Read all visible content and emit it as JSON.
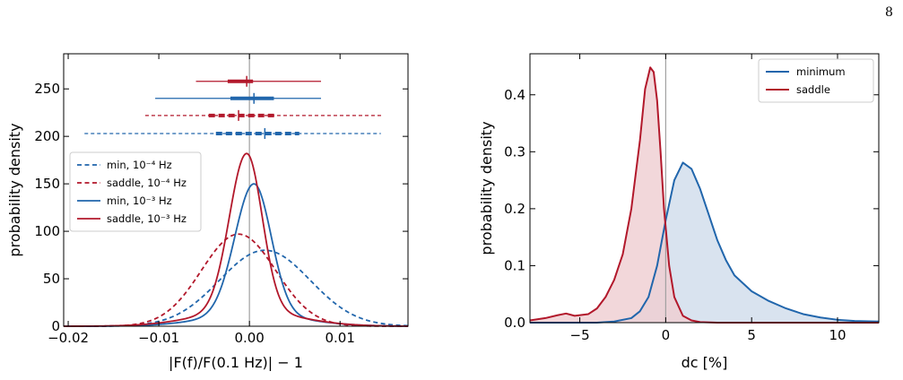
{
  "page_number": "8",
  "colors": {
    "blue": "#2166ac",
    "red": "#b2182b",
    "blue_fill": "#d0dceb",
    "red_fill": "#efcdd1",
    "zero_line": "#a0a0a0"
  },
  "chart_data": [
    {
      "type": "line",
      "xlabel": "|F(f)/F(0.1 Hz)| − 1",
      "ylabel": "probability density",
      "xlim": [
        -0.0205,
        0.0175
      ],
      "ylim": [
        0,
        287
      ],
      "xticks": [
        {
          "value": -0.02,
          "label": "−0.02"
        },
        {
          "value": -0.01,
          "label": "−0.01"
        },
        {
          "value": 0.0,
          "label": "0.00"
        },
        {
          "value": 0.01,
          "label": "0.01"
        }
      ],
      "yticks": [
        0,
        50,
        100,
        150,
        200,
        250
      ],
      "grid": false,
      "legend_position": "center-left",
      "vline_x": 0,
      "series": [
        {
          "name": "min, 10⁻⁴ Hz",
          "color": "#2166ac",
          "dash": true,
          "kind": "gauss",
          "mu": 0.0017,
          "sigma": 0.005,
          "peak": 80
        },
        {
          "name": "saddle, 10⁻⁴ Hz",
          "color": "#b2182b",
          "dash": true,
          "kind": "gauss",
          "mu": -0.0012,
          "sigma": 0.0041,
          "peak": 97
        },
        {
          "name": "min, 10⁻³ Hz",
          "color": "#2166ac",
          "dash": false,
          "kind": "peaked",
          "mu": 0.0005,
          "sigma_left": 0.0021,
          "sigma_right": 0.0019,
          "tail_sigma": 0.0055,
          "tail_weight": 0.08,
          "peak": 150
        },
        {
          "name": "saddle, 10⁻³ Hz",
          "color": "#b2182b",
          "dash": false,
          "kind": "peaked",
          "mu": -0.0003,
          "sigma_left": 0.0019,
          "sigma_right": 0.0017,
          "tail_sigma": 0.0055,
          "tail_weight": 0.09,
          "peak": 182
        }
      ],
      "intervals": [
        {
          "series": "saddle, 10⁻³ Hz",
          "y": 258,
          "color": "#b2182b",
          "dash": false,
          "thin": [
            -0.0059,
            0.0079
          ],
          "thick": [
            -0.0024,
            0.0004
          ],
          "median": -0.0003
        },
        {
          "series": "min, 10⁻³ Hz",
          "y": 240,
          "color": "#2166ac",
          "dash": false,
          "thin": [
            -0.0104,
            0.0079
          ],
          "thick": [
            -0.0021,
            0.0027
          ],
          "median": 0.0005
        },
        {
          "series": "saddle, 10⁻⁴ Hz",
          "y": 222,
          "color": "#b2182b",
          "dash": true,
          "thin": [
            -0.0115,
            0.0147
          ],
          "thick": [
            -0.0045,
            0.0028
          ],
          "median": -0.0012
        },
        {
          "series": "min, 10⁻⁴ Hz",
          "y": 203,
          "color": "#2166ac",
          "dash": true,
          "thin": [
            -0.0182,
            0.0145
          ],
          "thick": [
            -0.0037,
            0.0055
          ],
          "median": 0.0017
        }
      ]
    },
    {
      "type": "area",
      "xlabel": "dc  [%]",
      "ylabel": "probability density",
      "xlim": [
        -7.9,
        12.4
      ],
      "ylim": [
        0,
        0.472
      ],
      "xticks": [
        {
          "value": -5,
          "label": "−5"
        },
        {
          "value": 0,
          "label": "0"
        },
        {
          "value": 5,
          "label": "5"
        },
        {
          "value": 10,
          "label": "10"
        }
      ],
      "yticks": [
        {
          "value": 0.0,
          "label": "0.0"
        },
        {
          "value": 0.1,
          "label": "0.1"
        },
        {
          "value": 0.2,
          "label": "0.2"
        },
        {
          "value": 0.3,
          "label": "0.3"
        },
        {
          "value": 0.4,
          "label": "0.4"
        }
      ],
      "grid": false,
      "legend_position": "top-right",
      "vline_x": 0,
      "series": [
        {
          "name": "minimum",
          "color": "#2166ac",
          "fill": "#d0dceb",
          "x": [
            -7.9,
            -4,
            -3,
            -2,
            -1.5,
            -1,
            -0.5,
            0,
            0.5,
            1,
            1.5,
            2,
            2.5,
            3,
            3.5,
            4,
            5,
            6,
            7,
            8,
            9,
            10,
            11,
            12.4
          ],
          "y": [
            0,
            0,
            0.002,
            0.008,
            0.02,
            0.045,
            0.1,
            0.18,
            0.25,
            0.281,
            0.27,
            0.235,
            0.19,
            0.145,
            0.11,
            0.083,
            0.055,
            0.038,
            0.025,
            0.015,
            0.009,
            0.005,
            0.003,
            0.002
          ]
        },
        {
          "name": "saddle",
          "color": "#b2182b",
          "fill": "#efcdd1",
          "x": [
            -7.9,
            -7,
            -6.3,
            -5.8,
            -5.3,
            -4.5,
            -4,
            -3.5,
            -3,
            -2.5,
            -2,
            -1.5,
            -1.2,
            -0.9,
            -0.7,
            -0.5,
            -0.3,
            -0.1,
            0.2,
            0.5,
            1,
            1.5,
            2,
            3,
            12.4
          ],
          "y": [
            0.004,
            0.008,
            0.013,
            0.016,
            0.012,
            0.015,
            0.025,
            0.045,
            0.075,
            0.12,
            0.2,
            0.32,
            0.41,
            0.448,
            0.44,
            0.39,
            0.3,
            0.2,
            0.1,
            0.045,
            0.012,
            0.004,
            0.001,
            0,
            0
          ]
        }
      ]
    }
  ]
}
